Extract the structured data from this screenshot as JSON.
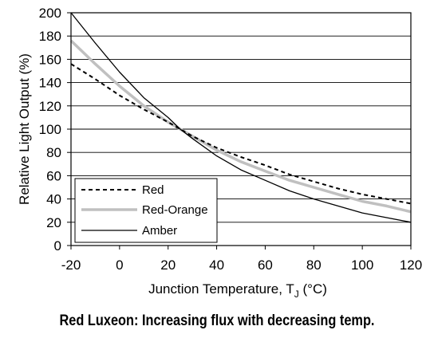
{
  "chart_data": {
    "type": "line",
    "xlabel": "Junction Temperature, T",
    "xlabel_subscript": "J",
    "xlabel_unit": "(°C)",
    "ylabel": "Relative Light Output (%)",
    "xlim": [
      -20,
      120
    ],
    "ylim": [
      0,
      200
    ],
    "xticks": [
      -20,
      0,
      20,
      40,
      60,
      80,
      100,
      120
    ],
    "yticks": [
      0,
      20,
      40,
      60,
      80,
      100,
      120,
      140,
      160,
      180,
      200
    ],
    "grid": "horizontal",
    "legend_position": "bottom-left",
    "series": [
      {
        "name": "Red",
        "style": "dashed",
        "color": "#000000",
        "x": [
          -20,
          -10,
          0,
          10,
          20,
          25,
          30,
          40,
          50,
          60,
          70,
          80,
          90,
          100,
          110,
          120
        ],
        "y": [
          156,
          143,
          129,
          117,
          106,
          100,
          94,
          84,
          76,
          69,
          61,
          55,
          49,
          44,
          40,
          36
        ]
      },
      {
        "name": "Red-Orange",
        "style": "solid-thick",
        "color": "#c0c0c0",
        "x": [
          -20,
          -10,
          0,
          10,
          20,
          25,
          30,
          40,
          50,
          60,
          70,
          80,
          90,
          100,
          110,
          120
        ],
        "y": [
          176,
          156,
          137,
          120,
          106,
          100,
          94,
          82,
          72,
          64,
          56,
          50,
          44,
          38,
          34,
          29
        ]
      },
      {
        "name": "Amber",
        "style": "solid",
        "color": "#000000",
        "x": [
          -20,
          -10,
          0,
          10,
          20,
          25,
          30,
          40,
          50,
          60,
          70,
          80,
          90,
          100,
          110,
          120
        ],
        "y": [
          201,
          174,
          149,
          127,
          110,
          100,
          92,
          77,
          65,
          56,
          47,
          40,
          34,
          28,
          24,
          20
        ]
      }
    ]
  },
  "caption": "Red Luxeon: Increasing flux with decreasing temp."
}
